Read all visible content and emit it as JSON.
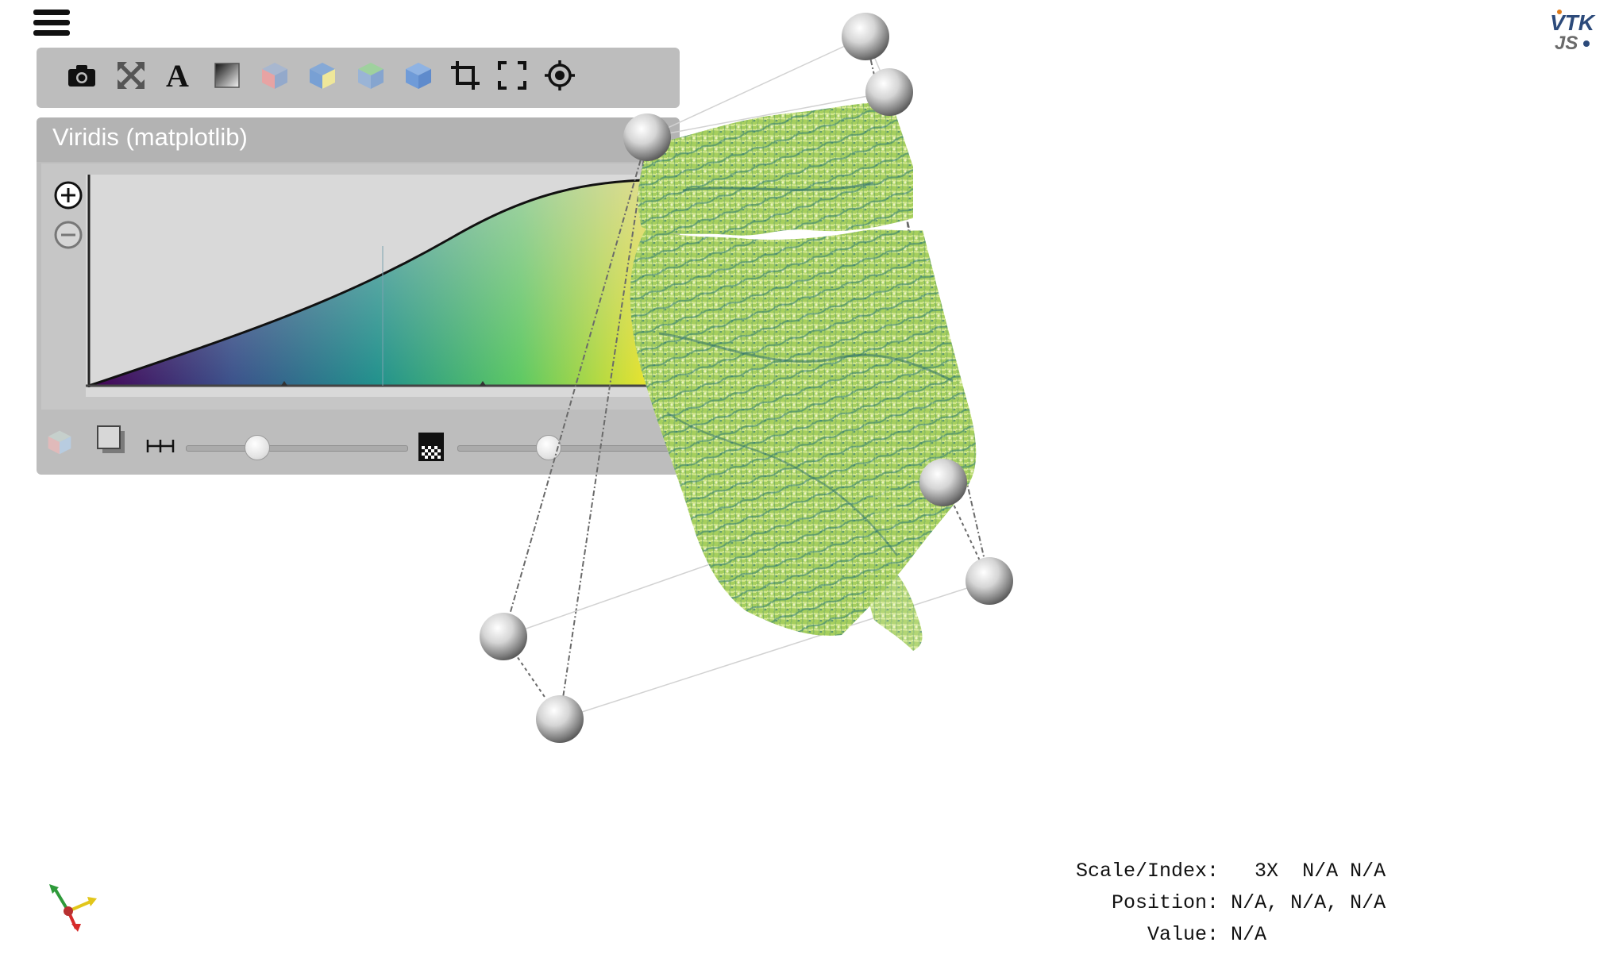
{
  "toolbar": {
    "tools": [
      "camera-icon",
      "reset-view-icon",
      "text-annotation-icon",
      "background-gradient-icon",
      "view-x-cube-icon",
      "view-y-cube-icon",
      "view-z-cube-icon",
      "view-iso-cube-icon",
      "crop-icon",
      "fullscreen-icon",
      "pick-target-icon"
    ]
  },
  "colormap": {
    "preset_name": "Viridis (matplotlib)",
    "colors": [
      "#440154",
      "#3b528b",
      "#21918c",
      "#5ec962",
      "#fde725"
    ]
  },
  "controls": {
    "sampling_slider": 0.32,
    "opacity_slider": 0.41
  },
  "info": {
    "scale_label": "Scale/Index:",
    "scale_value": "3X",
    "index_value": "N/A N/A",
    "position_label": "Position:",
    "position_value": "N/A, N/A, N/A",
    "value_label": "Value:",
    "value_value": "N/A"
  },
  "logo": {
    "line1": "VTK",
    "line2": "JS"
  }
}
